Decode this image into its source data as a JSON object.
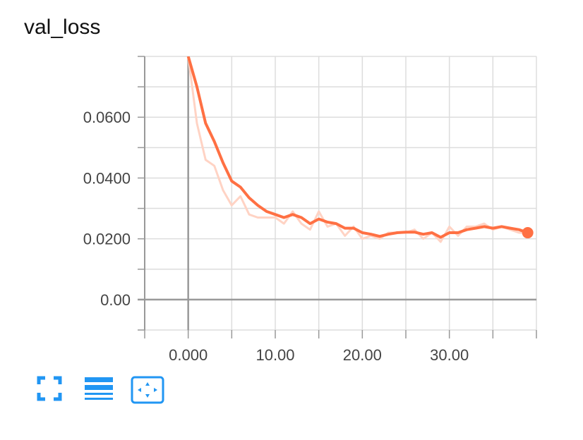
{
  "card": {
    "title": "val_loss"
  },
  "chart_data": {
    "type": "line",
    "title": "val_loss",
    "xlabel": "",
    "ylabel": "",
    "xlim": [
      -5,
      40
    ],
    "ylim": [
      -0.01,
      0.08
    ],
    "x_ticks": [
      0,
      10,
      20,
      30
    ],
    "x_tick_labels": [
      "0.000",
      "10.00",
      "20.00",
      "30.00"
    ],
    "y_ticks": [
      0,
      0.02,
      0.04,
      0.06
    ],
    "y_tick_labels": [
      "0.00",
      "0.0200",
      "0.0400",
      "0.0600"
    ],
    "grid": true,
    "colors": {
      "smoothed": "#ff7043",
      "raw": "#ffd3c4",
      "grid": "#dddddd",
      "axis": "#999999"
    },
    "series": [
      {
        "x": [
          0,
          1,
          2,
          3,
          4,
          5,
          6,
          7,
          8,
          9,
          10,
          11,
          12,
          13,
          14,
          15,
          16,
          17,
          18,
          19,
          20,
          21,
          22,
          23,
          24,
          25,
          26,
          27,
          28,
          29,
          30,
          31,
          32,
          33,
          34,
          35,
          36,
          37,
          38,
          39
        ],
        "values": [
          0.08,
          0.058,
          0.046,
          0.044,
          0.036,
          0.031,
          0.034,
          0.028,
          0.027,
          0.027,
          0.027,
          0.025,
          0.029,
          0.025,
          0.023,
          0.029,
          0.024,
          0.025,
          0.021,
          0.024,
          0.02,
          0.021,
          0.02,
          0.022,
          0.022,
          0.022,
          0.023,
          0.02,
          0.022,
          0.019,
          0.024,
          0.021,
          0.024,
          0.024,
          0.025,
          0.023,
          0.024,
          0.023,
          0.022,
          0.022
        ],
        "style": "raw"
      },
      {
        "x": [
          0,
          1,
          2,
          3,
          4,
          5,
          6,
          7,
          8,
          9,
          10,
          11,
          12,
          13,
          14,
          15,
          16,
          17,
          18,
          19,
          20,
          21,
          22,
          23,
          24,
          25,
          26,
          27,
          28,
          29,
          30,
          31,
          32,
          33,
          34,
          35,
          36,
          37,
          38,
          39
        ],
        "values": [
          0.08,
          0.07,
          0.058,
          0.052,
          0.045,
          0.039,
          0.037,
          0.0335,
          0.031,
          0.029,
          0.028,
          0.027,
          0.028,
          0.027,
          0.025,
          0.0265,
          0.0255,
          0.025,
          0.0235,
          0.0235,
          0.022,
          0.0215,
          0.0208,
          0.0215,
          0.022,
          0.0222,
          0.0222,
          0.0215,
          0.022,
          0.0205,
          0.022,
          0.022,
          0.023,
          0.0235,
          0.024,
          0.0235,
          0.024,
          0.0235,
          0.023,
          0.022
        ],
        "style": "smoothed"
      }
    ]
  },
  "toolbar": {
    "icons": [
      "fit-icon",
      "data-list-icon",
      "fit-domain-icon"
    ]
  }
}
